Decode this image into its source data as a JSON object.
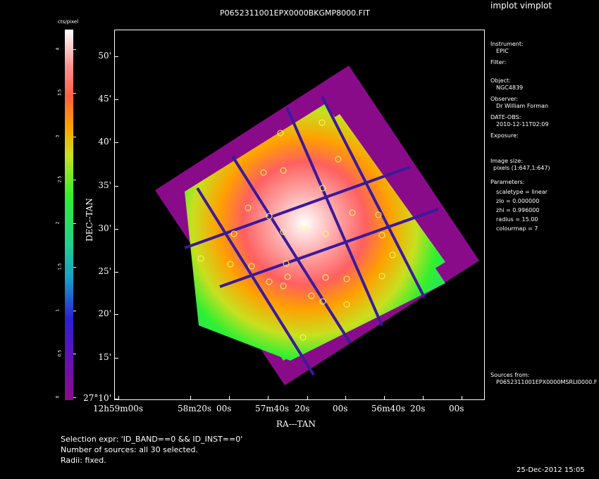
{
  "header": {
    "title": "P0652311001EPX0000BKGMP8000.FIT",
    "app": "implot vimplot"
  },
  "colorbar": {
    "unit": "cts/pixel",
    "ticks": [
      "0",
      "0.5",
      "1",
      "1.5",
      "2",
      "2.5",
      "3",
      "3.5",
      "4"
    ]
  },
  "axes": {
    "ylabel": "DEC--TAN",
    "xlabel": "RA---TAN",
    "yticks": [
      "50'",
      "45'",
      "40'",
      "35'",
      "30'",
      "25'",
      "20'",
      "15'",
      "27°10'"
    ],
    "xticks": [
      "12h59m00s",
      "58m20s",
      "00s",
      "57m40s",
      "20s",
      "00s",
      "56m40s",
      "20s",
      "00s"
    ]
  },
  "info": {
    "instrument_label": "Instrument:",
    "instrument": "EPIC",
    "filter_label": "Filter:",
    "object_label": "Object:",
    "object": "NGC4839",
    "observer_label": "Observer:",
    "observer": "Dr William Forman",
    "date_label": "DATE-OBS:",
    "date": "2010-12-11T02:09",
    "exposure_label": "Exposure:",
    "imagesize_label": "Image size:",
    "imagesize": "pixels (1:647,1:647)",
    "parameters_label": "Parameters:",
    "p_scaletype": "scaletype = linear",
    "p_zlo": "zlo = 0.000000",
    "p_zhi": "zhi = 0.996000",
    "p_radius": "radius = 15.00",
    "p_colourmap": "colourmap = 7",
    "sources_label": "Sources from:",
    "sources": "P0652311001EPX0000MSRLI0000.F"
  },
  "footer": {
    "selection": "Selection expr: 'ID_BAND==0 && ID_INST==0'",
    "count": "Number of sources: all 30 selected.",
    "radii": "Radii: fixed.",
    "timestamp": "25-Dec-2012 15:05"
  },
  "colors": {
    "background": "#000000",
    "exposure_edge": "#8a0b8a",
    "chip_gap": "#3b1a9a",
    "source_marker": "#ffff66"
  },
  "source_count": 30
}
